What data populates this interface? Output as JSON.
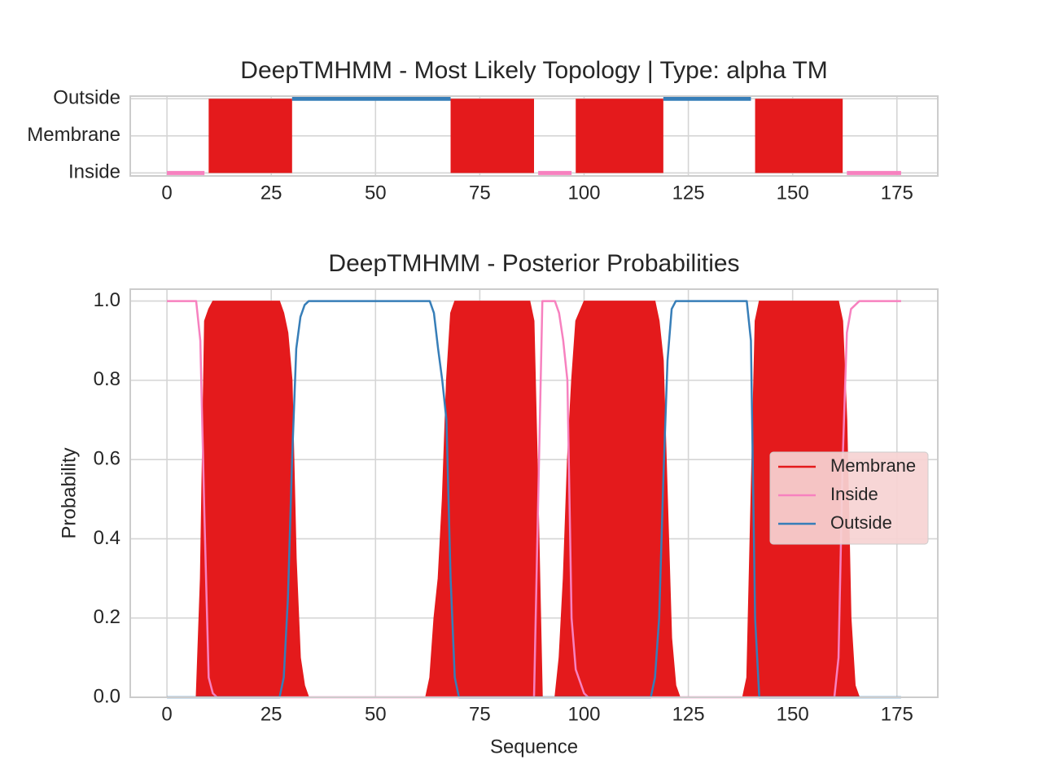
{
  "chart_data": [
    {
      "type": "topology",
      "title": "DeepTMHMM - Most Likely Topology | Type: alpha TM",
      "xlim": [
        -8.8,
        184.8
      ],
      "xticks": [
        0,
        25,
        50,
        75,
        100,
        125,
        150,
        175
      ],
      "ylim": [
        -0.08,
        2.07
      ],
      "yticks": [
        {
          "value": 0,
          "label": "Inside"
        },
        {
          "value": 1,
          "label": "Membrane"
        },
        {
          "value": 2,
          "label": "Outside"
        }
      ],
      "grid": true,
      "series": [
        {
          "name": "Membrane",
          "color": "#e41a1c",
          "level": 1,
          "band": true,
          "segments": [
            {
              "start": 10,
              "end": 30
            },
            {
              "start": 68,
              "end": 88
            },
            {
              "start": 98,
              "end": 119
            },
            {
              "start": 141,
              "end": 162
            }
          ]
        },
        {
          "name": "Inside",
          "color": "#f781bf",
          "level": 0,
          "segments": [
            {
              "start": 0,
              "end": 9
            },
            {
              "start": 89,
              "end": 97
            },
            {
              "start": 163,
              "end": 176
            }
          ]
        },
        {
          "name": "Outside",
          "color": "#377eb8",
          "level": 2,
          "segments": [
            {
              "start": 30,
              "end": 68
            },
            {
              "start": 119,
              "end": 140
            }
          ]
        }
      ]
    },
    {
      "type": "line",
      "title": "DeepTMHMM - Posterior Probabilities",
      "xlabel": "Sequence",
      "ylabel": "Probability",
      "xlim": [
        -8.8,
        184.8
      ],
      "xticks": [
        0,
        25,
        50,
        75,
        100,
        125,
        150,
        175
      ],
      "ylim": [
        0,
        1.03
      ],
      "yticks": [
        {
          "value": 0,
          "label": "0.0"
        },
        0.2,
        0.4,
        0.6,
        0.8,
        {
          "value": 1,
          "label": "1.0"
        }
      ],
      "grid": true,
      "legend": "center right",
      "series": [
        {
          "name": "Membrane",
          "color": "#e41a1c",
          "fill": true,
          "x": [
            0,
            7,
            8,
            9,
            10,
            11,
            27,
            28,
            29,
            30,
            31,
            32,
            33,
            34,
            62,
            63,
            64,
            65,
            66,
            67,
            68,
            69,
            87,
            88,
            89,
            90,
            93,
            94,
            95,
            96,
            97,
            98,
            100,
            117,
            118,
            119,
            120,
            121,
            122,
            123,
            138,
            139,
            140,
            141,
            142,
            161,
            162,
            163,
            164,
            165,
            166,
            176
          ],
          "values": [
            0,
            0,
            0.3,
            0.95,
            0.98,
            1,
            1,
            0.97,
            0.92,
            0.8,
            0.35,
            0.1,
            0.03,
            0,
            0,
            0.05,
            0.2,
            0.3,
            0.5,
            0.8,
            0.97,
            1,
            1,
            0.95,
            0.5,
            0,
            0,
            0.1,
            0.3,
            0.6,
            0.8,
            0.95,
            1,
            1,
            0.95,
            0.85,
            0.5,
            0.15,
            0.03,
            0,
            0,
            0.05,
            0.5,
            0.95,
            1,
            1,
            0.95,
            0.7,
            0.2,
            0.03,
            0,
            0
          ]
        },
        {
          "name": "Inside",
          "color": "#f781bf",
          "x": [
            0,
            7,
            8,
            9,
            10,
            11,
            12,
            88,
            89,
            90,
            93,
            94,
            95,
            96,
            97,
            98,
            100,
            101,
            160,
            161,
            162,
            163,
            164,
            166,
            176
          ],
          "values": [
            1,
            1,
            0.9,
            0.45,
            0.05,
            0.01,
            0,
            0,
            0.5,
            1,
            1,
            0.97,
            0.9,
            0.8,
            0.2,
            0.07,
            0.01,
            0,
            0,
            0.1,
            0.6,
            0.92,
            0.98,
            1,
            1
          ]
        },
        {
          "name": "Outside",
          "color": "#377eb8",
          "x": [
            0,
            27,
            28,
            29,
            30,
            31,
            32,
            33,
            34,
            63,
            64,
            65,
            66,
            67,
            68,
            69,
            70,
            116,
            117,
            118,
            119,
            120,
            121,
            122,
            139,
            140,
            141,
            142,
            176
          ],
          "values": [
            0,
            0,
            0.05,
            0.25,
            0.6,
            0.88,
            0.96,
            0.99,
            1,
            1,
            0.97,
            0.88,
            0.8,
            0.7,
            0.3,
            0.05,
            0,
            0,
            0.05,
            0.2,
            0.55,
            0.85,
            0.98,
            1,
            1,
            0.9,
            0.2,
            0,
            0
          ]
        }
      ]
    }
  ]
}
